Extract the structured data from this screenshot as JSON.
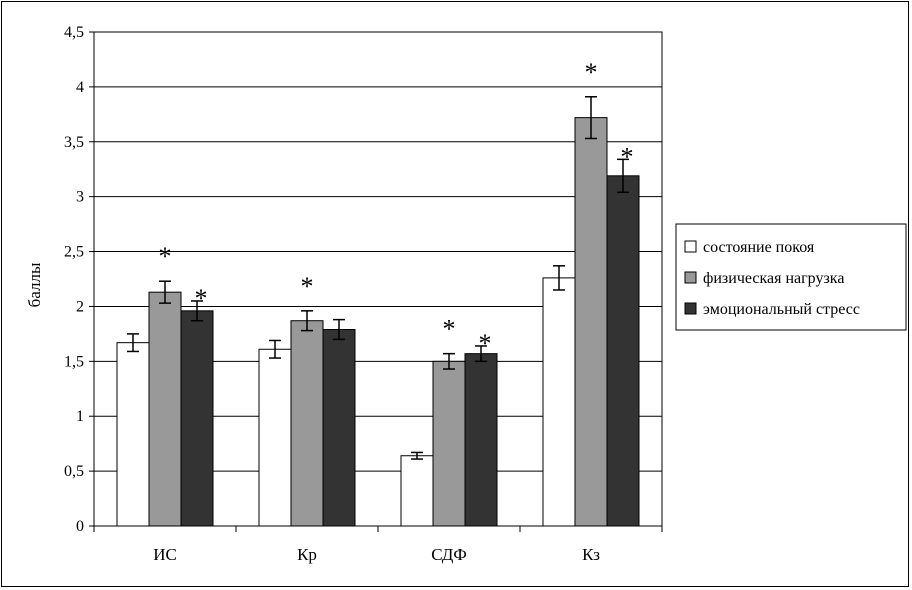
{
  "chart_data": {
    "type": "bar",
    "title": "",
    "xlabel": "",
    "ylabel": "баллы",
    "ylim": [
      0,
      4.5
    ],
    "yticks": [
      "0",
      "0,5",
      "1",
      "1,5",
      "2",
      "2,5",
      "3",
      "3,5",
      "4",
      "4,5"
    ],
    "categories": [
      "ИС",
      "Кр",
      "СДФ",
      "Кз"
    ],
    "grid": true,
    "legend_position": "right",
    "series": [
      {
        "name": "состояние покоя",
        "color": "#ffffff",
        "values": [
          1.67,
          1.61,
          0.64,
          2.26
        ],
        "errors": [
          0.08,
          0.08,
          0.03,
          0.11
        ],
        "significant": [
          false,
          false,
          false,
          false
        ]
      },
      {
        "name": "физическая нагрузка",
        "color": "#999999",
        "values": [
          2.13,
          1.87,
          1.5,
          3.72
        ],
        "errors": [
          0.1,
          0.09,
          0.07,
          0.19
        ],
        "significant": [
          true,
          true,
          true,
          true
        ]
      },
      {
        "name": "эмоциональный стресс",
        "color": "#333333",
        "values": [
          1.96,
          1.79,
          1.57,
          3.19
        ],
        "errors": [
          0.09,
          0.09,
          0.07,
          0.15
        ],
        "significant": [
          true,
          false,
          true,
          true
        ]
      }
    ],
    "significance_marker": "*"
  }
}
